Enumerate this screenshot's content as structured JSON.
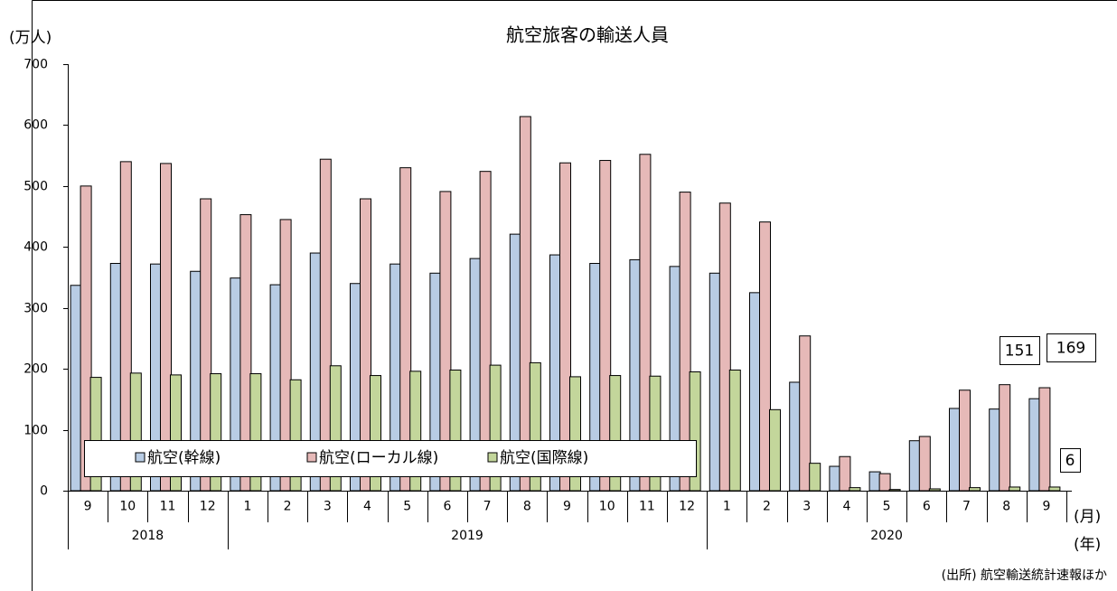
{
  "chart_data": {
    "type": "bar",
    "title": "航空旅客の輸送人員",
    "y_label": "(万人)",
    "x_label": "(月)",
    "x_group_label": "(年)",
    "source": "(出所) 航空輸送統計速報ほか",
    "category_groups": [
      {
        "label": "2018",
        "categories": [
          "9",
          "10",
          "11",
          "12"
        ]
      },
      {
        "label": "2019",
        "categories": [
          "1",
          "2",
          "3",
          "4",
          "5",
          "6",
          "7",
          "8",
          "9",
          "10",
          "11",
          "12"
        ]
      },
      {
        "label": "2020",
        "categories": [
          "1",
          "2",
          "3",
          "4",
          "5",
          "6",
          "7",
          "8",
          "9"
        ]
      }
    ],
    "series": [
      {
        "name": "航空(幹線)",
        "color": "#b8cce4",
        "values": [
          337,
          373,
          372,
          360,
          349,
          338,
          390,
          340,
          372,
          357,
          381,
          421,
          387,
          373,
          379,
          368,
          357,
          325,
          178,
          40,
          31,
          82,
          135,
          134,
          151
        ]
      },
      {
        "name": "航空(ローカル線)",
        "color": "#e6b9b8",
        "values": [
          500,
          540,
          537,
          479,
          453,
          445,
          544,
          479,
          530,
          491,
          524,
          614,
          538,
          542,
          552,
          490,
          472,
          441,
          254,
          56,
          28,
          89,
          165,
          174,
          169
        ]
      },
      {
        "name": "航空(国際線)",
        "color": "#c3d69b",
        "values": [
          186,
          193,
          190,
          192,
          192,
          182,
          205,
          189,
          196,
          198,
          206,
          210,
          187,
          189,
          188,
          195,
          198,
          133,
          45,
          5,
          2,
          3,
          5,
          6,
          6
        ]
      }
    ],
    "ylim": [
      0,
      700
    ],
    "yticks": [
      0,
      100,
      200,
      300,
      400,
      500,
      600,
      700
    ],
    "grid": false,
    "legend": "bottom-left"
  }
}
